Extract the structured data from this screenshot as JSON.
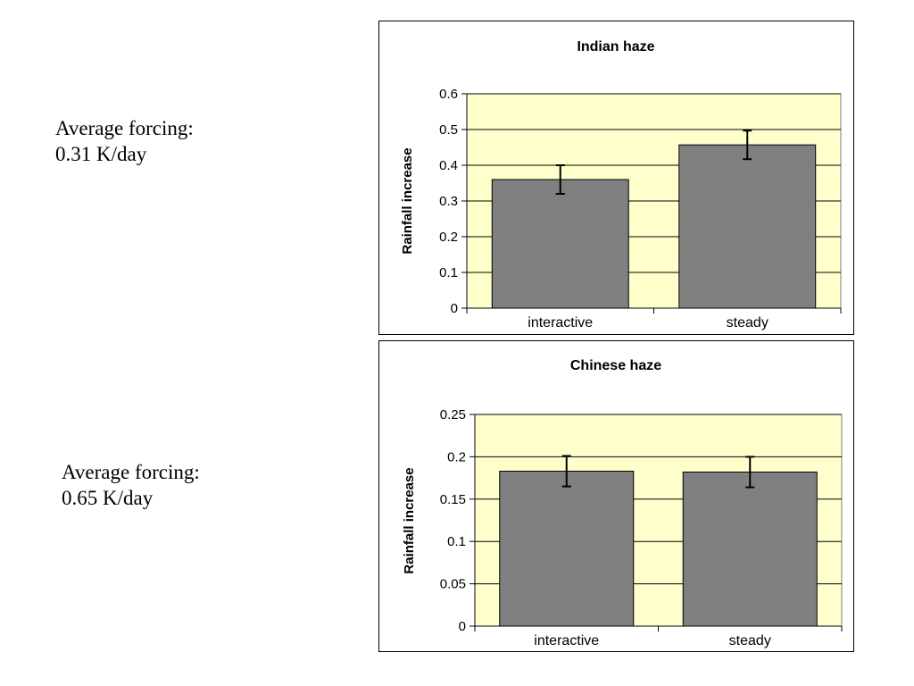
{
  "notes": [
    {
      "line1": "Average forcing:",
      "line2": "0.31 K/day"
    },
    {
      "line1": "Average forcing:",
      "line2": "0.65 K/day"
    }
  ],
  "colors": {
    "plot_background": "#ffffcc",
    "bar_fill": "#808080",
    "bar_stroke": "#000000",
    "frame_stroke": "#000000",
    "plot_border": "#808080"
  },
  "chart_data": [
    {
      "type": "bar",
      "title": "Indian haze",
      "ylabel": "Rainfall increase",
      "xlabel": "",
      "categories": [
        "interactive",
        "steady"
      ],
      "values": [
        0.36,
        0.457
      ],
      "errors": [
        0.04,
        0.04
      ],
      "ylim": [
        0,
        0.6
      ],
      "yticks": [
        0,
        0.1,
        0.2,
        0.3,
        0.4,
        0.5,
        0.6
      ],
      "ytick_labels": [
        "0",
        "0.1",
        "0.2",
        "0.3",
        "0.4",
        "0.5",
        "0.6"
      ],
      "grid": true,
      "legend": "none"
    },
    {
      "type": "bar",
      "title": "Chinese haze",
      "ylabel": "Rainfall increase",
      "xlabel": "",
      "categories": [
        "interactive",
        "steady"
      ],
      "values": [
        0.183,
        0.182
      ],
      "errors": [
        0.018,
        0.018
      ],
      "ylim": [
        0,
        0.25
      ],
      "yticks": [
        0,
        0.05,
        0.1,
        0.15,
        0.2,
        0.25
      ],
      "ytick_labels": [
        "0",
        "0.05",
        "0.1",
        "0.15",
        "0.2",
        "0.25"
      ],
      "grid": true,
      "legend": "none"
    }
  ]
}
